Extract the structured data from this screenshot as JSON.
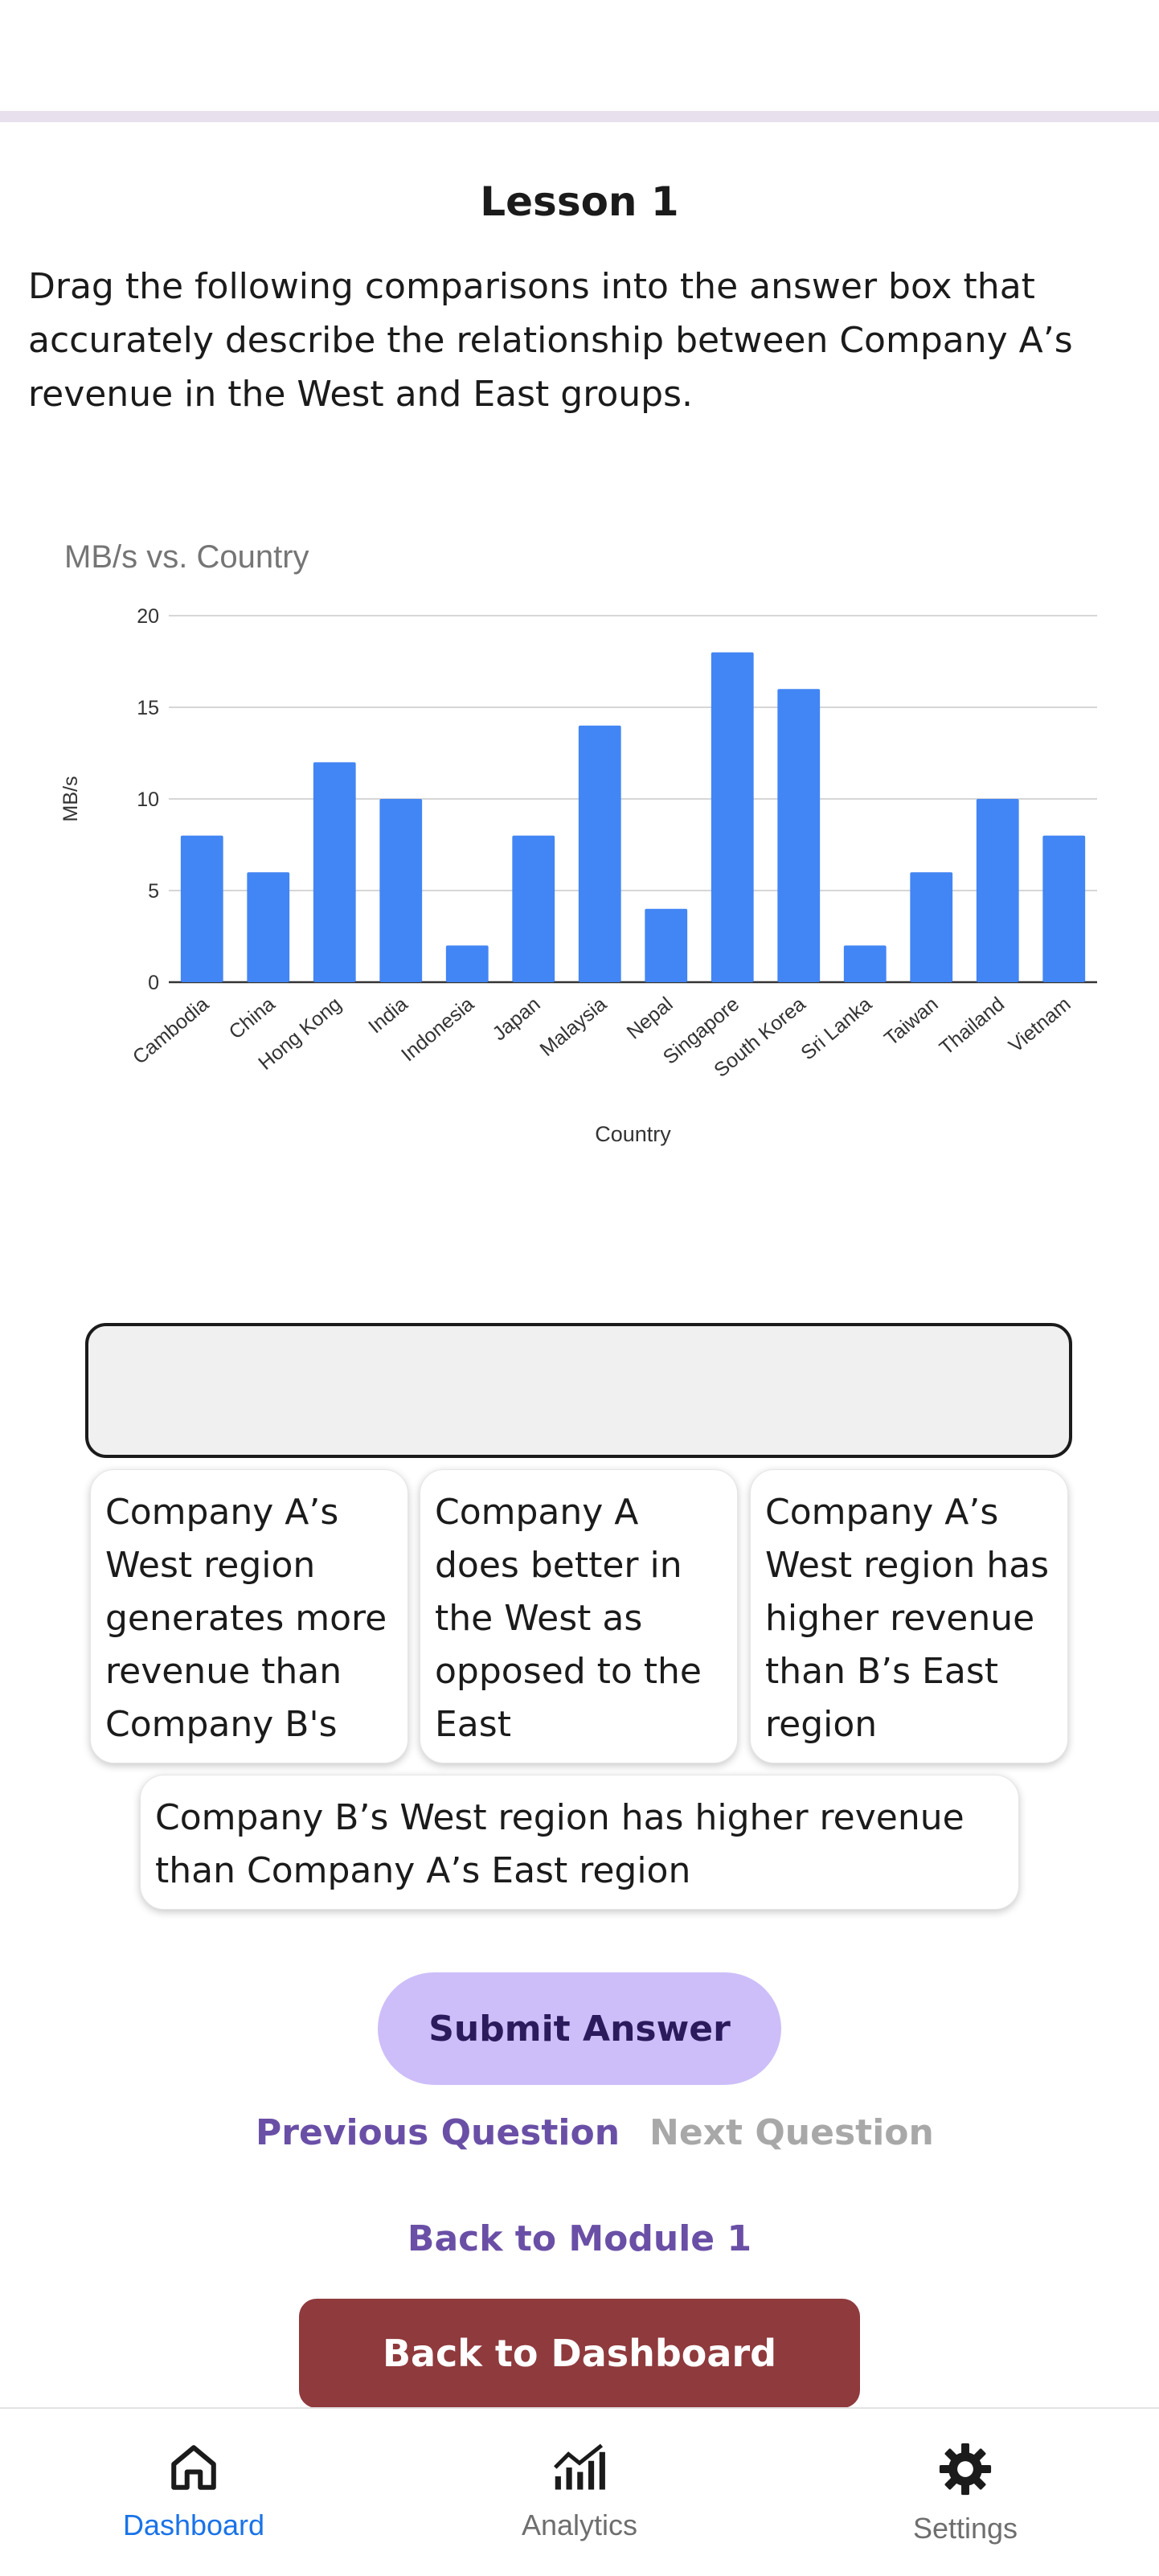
{
  "lesson": {
    "title": "Lesson 1",
    "prompt": "Drag the following comparisons into the answer box that accurately describe the relationship between Company A’s revenue in the West and East groups."
  },
  "chart_data": {
    "type": "bar",
    "title": "MB/s vs. Country",
    "xlabel": "Country",
    "ylabel": "MB/s",
    "ylim": [
      0,
      20
    ],
    "yticks": [
      0,
      5,
      10,
      15,
      20
    ],
    "grid": true,
    "legend": "none",
    "categories": [
      "Cambodia",
      "China",
      "Hong Kong",
      "India",
      "Indonesia",
      "Japan",
      "Malaysia",
      "Nepal",
      "Singapore",
      "South Korea",
      "Sri Lanka",
      "Taiwan",
      "Thailand",
      "Vietnam"
    ],
    "values": [
      8,
      6,
      12,
      10,
      2,
      8,
      14,
      4,
      18,
      16,
      2,
      6,
      10,
      8
    ],
    "bar_color": "#4285f4"
  },
  "answer_box": {
    "value": ""
  },
  "options": [
    "Company A’s West region generates more revenue than Company B's",
    "Company A does better in the West as opposed to the East",
    "Company A’s West region has higher revenue than B’s East region",
    "Company B’s West region has higher revenue than Company A’s East region"
  ],
  "actions": {
    "submit": "Submit Answer",
    "previous": "Previous Question",
    "next": "Next Question",
    "back_module": "Back to Module 1",
    "back_dashboard": "Back to Dashboard"
  },
  "nav": {
    "items": [
      {
        "label": "Dashboard",
        "icon": "home-icon",
        "active": true
      },
      {
        "label": "Analytics",
        "icon": "analytics-icon",
        "active": false
      },
      {
        "label": "Settings",
        "icon": "gear-icon",
        "active": false
      }
    ]
  },
  "colors": {
    "accent": "#6a4fa6",
    "submit_bg": "#cdbef9",
    "dashboard_btn": "#8f3a3d",
    "nav_active": "#1a73e8",
    "disabled": "#a8a8a8"
  }
}
